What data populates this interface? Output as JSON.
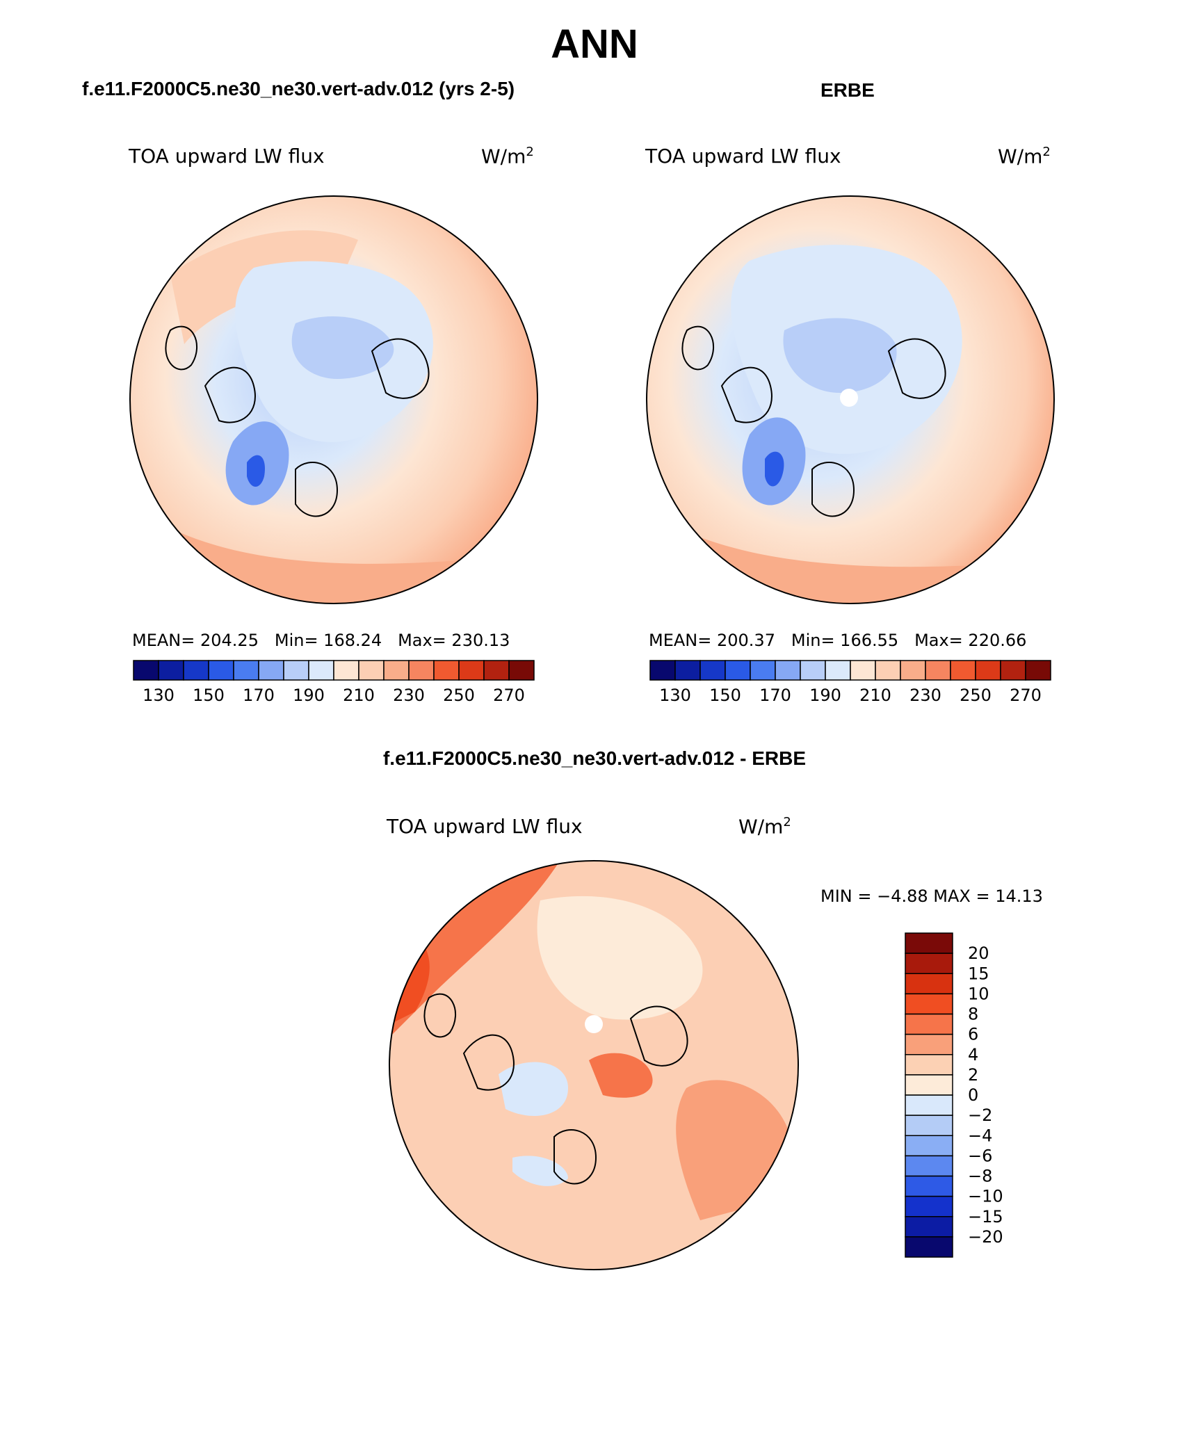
{
  "title": "ANN",
  "panels": [
    {
      "case_title": "f.e11.F2000C5.ne30_ne30.vert-adv.012 (yrs 2-5)",
      "variable": "TOA upward LW flux",
      "units": "W/m",
      "units_sup": "2",
      "stats": {
        "mean": "MEAN= 204.25",
        "min": "Min= 168.24",
        "max": "Max= 230.13"
      }
    },
    {
      "case_title": "ERBE",
      "variable": "TOA upward LW flux",
      "units": "W/m",
      "units_sup": "2",
      "stats": {
        "mean": "MEAN= 200.37",
        "min": "Min= 166.55",
        "max": "Max= 220.66"
      }
    }
  ],
  "diff_panel": {
    "case_title": "f.e11.F2000C5.ne30_ne30.vert-adv.012 - ERBE",
    "variable": "TOA upward LW flux",
    "units": "W/m",
    "units_sup": "2",
    "stats": "MIN =   −4.88 MAX =   14.13"
  },
  "colorbar_top": {
    "colors": [
      "#08086e",
      "#0c1ea0",
      "#1638c8",
      "#2a5ae6",
      "#4a7cf0",
      "#86a8f4",
      "#b8cef8",
      "#dbe9fb",
      "#fde6d4",
      "#fccfb4",
      "#f9ad8a",
      "#f68560",
      "#f05a30",
      "#dc3a18",
      "#b22210",
      "#780a06"
    ],
    "labels": [
      "130",
      "150",
      "170",
      "190",
      "210",
      "230",
      "250",
      "270"
    ]
  },
  "colorbar_diff": {
    "colors_top_to_bottom": [
      "#7a0a08",
      "#a81a0c",
      "#d83210",
      "#f04e22",
      "#f6744a",
      "#f9a07a",
      "#fcd1b4",
      "#fdebd9",
      "#d9e8fb",
      "#b4ccf6",
      "#8aaef4",
      "#5c88f0",
      "#2e5ae6",
      "#1432cc",
      "#0c1ca4",
      "#08086e"
    ],
    "labels": [
      "20",
      "15",
      "10",
      "8",
      "6",
      "4",
      "2",
      "0",
      "−2",
      "−4",
      "−6",
      "−8",
      "−10",
      "−15",
      "−20"
    ]
  }
}
